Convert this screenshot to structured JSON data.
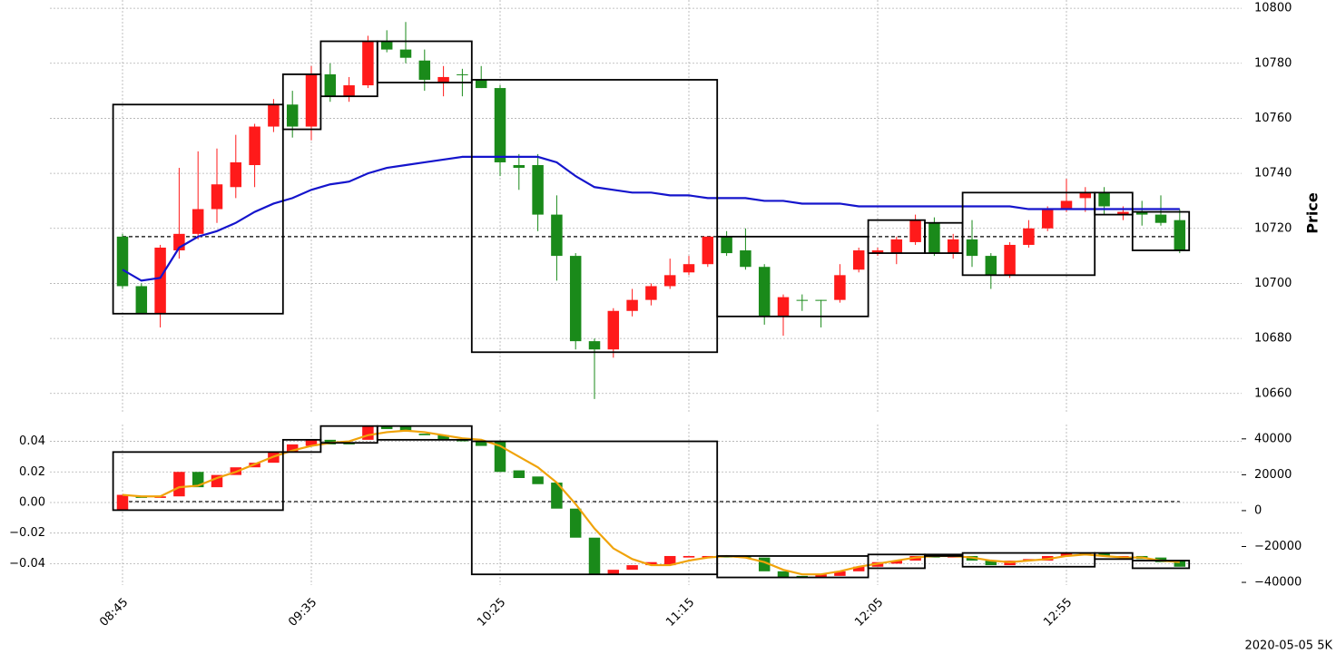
{
  "chart_data": [
    {
      "type": "candlestick",
      "categories": [
        "08:45",
        null,
        null,
        null,
        null,
        null,
        null,
        null,
        null,
        null,
        "09:35",
        null,
        null,
        null,
        null,
        null,
        null,
        null,
        null,
        null,
        "10:25",
        null,
        null,
        null,
        null,
        null,
        null,
        null,
        null,
        null,
        "11:15",
        null,
        null,
        null,
        null,
        null,
        null,
        null,
        null,
        null,
        "12:05",
        null,
        null,
        null,
        null,
        null,
        null,
        null,
        null,
        null,
        "12:55",
        null,
        null,
        null,
        null,
        null,
        null
      ],
      "open": [
        10717,
        10699,
        10689,
        10712,
        10718,
        10727,
        10735,
        10743,
        10757,
        10765,
        10757,
        10776,
        10768,
        10772,
        10788,
        10785,
        10781,
        10773,
        10776,
        10774,
        10771,
        10743,
        10743,
        10725,
        10710,
        10679,
        10676,
        10690,
        10694,
        10699,
        10704,
        10707,
        10717,
        10712,
        10706,
        10688,
        10694,
        10694,
        10694,
        10705,
        10711,
        10711,
        10715,
        10722,
        10711,
        10716,
        10710,
        10703,
        10714,
        10720,
        10727,
        10731,
        10733,
        10725,
        10726,
        10725,
        10723
      ],
      "high": [
        10718,
        10700,
        10714,
        10742,
        10748,
        10749,
        10754,
        10758,
        10767,
        10770,
        10779,
        10780,
        10775,
        10790,
        10792,
        10795,
        10785,
        10779,
        10778,
        10779,
        10772,
        10747,
        10747,
        10732,
        10711,
        10680,
        10691,
        10698,
        10700,
        10709,
        10710,
        10717,
        10719,
        10720,
        10707,
        10696,
        10696,
        10694,
        10707,
        10713,
        10713,
        10717,
        10725,
        10724,
        10718,
        10723,
        10711,
        10715,
        10723,
        10728,
        10738,
        10735,
        10735,
        10728,
        10730,
        10732,
        10727
      ],
      "low": [
        10698,
        10689,
        10684,
        10709,
        10716,
        10722,
        10731,
        10735,
        10755,
        10753,
        10752,
        10766,
        10766,
        10771,
        10784,
        10780,
        10770,
        10768,
        10768,
        10771,
        10739,
        10734,
        10719,
        10701,
        10676,
        10658,
        10673,
        10688,
        10692,
        10698,
        10703,
        10706,
        10710,
        10705,
        10685,
        10681,
        10690,
        10684,
        10693,
        10704,
        10710,
        10707,
        10714,
        10710,
        10709,
        10706,
        10698,
        10702,
        10713,
        10719,
        10726,
        10726,
        10725,
        10723,
        10721,
        10721,
        10711
      ],
      "close": [
        10699,
        10689,
        10713,
        10718,
        10727,
        10736,
        10744,
        10757,
        10765,
        10757,
        10776,
        10768,
        10772,
        10788,
        10785,
        10782,
        10774,
        10775,
        10776,
        10771,
        10744,
        10742,
        10725,
        10710,
        10679,
        10676,
        10690,
        10694,
        10699,
        10703,
        10707,
        10717,
        10711,
        10706,
        10688,
        10695,
        10694,
        10694,
        10703,
        10712,
        10712,
        10716,
        10723,
        10711,
        10716,
        10710,
        10703,
        10714,
        10720,
        10727,
        10730,
        10733,
        10728,
        10726,
        10725,
        10722,
        10712
      ],
      "up_color": "#ff1a1a",
      "down_color": "#1a8a1a",
      "lines": [
        {
          "color": "#1414cc",
          "values": [
            10705,
            10701,
            10702,
            10713,
            10717,
            10719,
            10722,
            10726,
            10729,
            10731,
            10734,
            10736,
            10737,
            10740,
            10742,
            10743,
            10744,
            10745,
            10746,
            10746,
            10746,
            10746,
            10746,
            10744,
            10739,
            10735,
            10734,
            10733,
            10733,
            10732,
            10732,
            10731,
            10731,
            10731,
            10730,
            10730,
            10729,
            10729,
            10729,
            10728,
            10728,
            10728,
            10728,
            10728,
            10728,
            10728,
            10728,
            10728,
            10727,
            10727,
            10727,
            10727,
            10727,
            10727,
            10727,
            10727,
            10727
          ]
        }
      ],
      "boxes": [
        {
          "from": 0,
          "to": 8,
          "low": 10689,
          "high": 10765
        },
        {
          "from": 9,
          "to": 10,
          "low": 10756,
          "high": 10776
        },
        {
          "from": 11,
          "to": 13,
          "low": 10768,
          "high": 10788
        },
        {
          "from": 14,
          "to": 18,
          "low": 10773,
          "high": 10788
        },
        {
          "from": 19,
          "to": 31,
          "low": 10675,
          "high": 10774
        },
        {
          "from": 32,
          "to": 39,
          "low": 10688,
          "high": 10717
        },
        {
          "from": 40,
          "to": 42,
          "low": 10711,
          "high": 10723
        },
        {
          "from": 43,
          "to": 44,
          "low": 10711,
          "high": 10722
        },
        {
          "from": 45,
          "to": 51,
          "low": 10703,
          "high": 10733
        },
        {
          "from": 52,
          "to": 53,
          "low": 10725,
          "high": 10733
        },
        {
          "from": 54,
          "to": 56,
          "low": 10712,
          "high": 10726
        }
      ],
      "hline": 10717,
      "ylim": [
        10653,
        10803
      ],
      "yticks": [
        10660,
        10680,
        10700,
        10720,
        10740,
        10760,
        10780,
        10800
      ],
      "ylabel": "Price",
      "grid": true
    },
    {
      "type": "candlestick",
      "open": [
        -0.005,
        0.004,
        0.003,
        0.004,
        0.02,
        0.01,
        0.018,
        0.023,
        0.026,
        0.033,
        0.037,
        0.041,
        0.039,
        0.041,
        0.05,
        0.05,
        0.045,
        0.044,
        0.041,
        0.04,
        0.04,
        0.021,
        0.017,
        0.013,
        -0.004,
        -0.023,
        -0.047,
        -0.044,
        -0.041,
        -0.041,
        -0.036,
        -0.036,
        -0.035,
        -0.035,
        -0.036,
        -0.045,
        -0.048,
        -0.049,
        -0.048,
        -0.045,
        -0.042,
        -0.04,
        -0.038,
        -0.035,
        -0.036,
        -0.035,
        -0.038,
        -0.041,
        -0.038,
        -0.038,
        -0.035,
        -0.034,
        -0.033,
        -0.036,
        -0.035,
        -0.036,
        -0.038
      ],
      "close": [
        0.005,
        0.003,
        0.004,
        0.02,
        0.01,
        0.018,
        0.023,
        0.026,
        0.033,
        0.038,
        0.041,
        0.038,
        0.038,
        0.05,
        0.048,
        0.047,
        0.044,
        0.041,
        0.04,
        0.037,
        0.02,
        0.016,
        0.012,
        -0.004,
        -0.023,
        -0.047,
        -0.044,
        -0.041,
        -0.039,
        -0.035,
        -0.035,
        -0.035,
        -0.036,
        -0.036,
        -0.045,
        -0.049,
        -0.049,
        -0.047,
        -0.045,
        -0.042,
        -0.039,
        -0.038,
        -0.035,
        -0.036,
        -0.035,
        -0.038,
        -0.041,
        -0.038,
        -0.037,
        -0.035,
        -0.033,
        -0.033,
        -0.035,
        -0.035,
        -0.037,
        -0.039,
        -0.042
      ],
      "up_color": "#ff1a1a",
      "down_color": "#1a8a1a",
      "lines": [
        {
          "color": "#f0a30a",
          "values": [
            0.005,
            0.004,
            0.004,
            0.01,
            0.011,
            0.016,
            0.02,
            0.025,
            0.03,
            0.034,
            0.037,
            0.039,
            0.04,
            0.044,
            0.046,
            0.047,
            0.046,
            0.044,
            0.042,
            0.041,
            0.037,
            0.03,
            0.023,
            0.013,
            -0.001,
            -0.017,
            -0.03,
            -0.037,
            -0.041,
            -0.041,
            -0.038,
            -0.036,
            -0.035,
            -0.036,
            -0.039,
            -0.044,
            -0.047,
            -0.047,
            -0.045,
            -0.042,
            -0.04,
            -0.038,
            -0.036,
            -0.035,
            -0.035,
            -0.036,
            -0.038,
            -0.039,
            -0.038,
            -0.037,
            -0.035,
            -0.034,
            -0.035,
            -0.036,
            -0.036,
            -0.038,
            -0.039
          ]
        }
      ],
      "boxes": [
        {
          "from": 0,
          "to": 8,
          "low": -0.005,
          "high": 0.033
        },
        {
          "from": 9,
          "to": 10,
          "low": 0.033,
          "high": 0.041
        },
        {
          "from": 11,
          "to": 13,
          "low": 0.039,
          "high": 0.05
        },
        {
          "from": 14,
          "to": 18,
          "low": 0.041,
          "high": 0.05
        },
        {
          "from": 19,
          "to": 31,
          "low": -0.047,
          "high": 0.04
        },
        {
          "from": 32,
          "to": 39,
          "low": -0.049,
          "high": -0.035
        },
        {
          "from": 40,
          "to": 42,
          "low": -0.043,
          "high": -0.034
        },
        {
          "from": 43,
          "to": 44,
          "low": -0.035,
          "high": -0.034
        },
        {
          "from": 45,
          "to": 51,
          "low": -0.042,
          "high": -0.033
        },
        {
          "from": 52,
          "to": 53,
          "low": -0.037,
          "high": -0.033
        },
        {
          "from": 54,
          "to": 56,
          "low": -0.043,
          "high": -0.038
        }
      ],
      "hline": 0.0006,
      "ylim": [
        -0.054,
        0.051
      ],
      "yticks": [
        0.04,
        0.02,
        {
          "value": 0,
          "label": "0.00"
        },
        {
          "value": -0.02,
          "label": "−0.02"
        },
        {
          "value": -0.04,
          "label": "−0.04"
        }
      ],
      "y2lim": [
        -41500,
        48000
      ],
      "y2ticks": [
        40000,
        20000,
        0,
        {
          "value": -20000,
          "label": "−20000"
        },
        {
          "value": -40000,
          "label": "−40000"
        }
      ],
      "grid": true
    }
  ],
  "footer": "2020-05-05 5K"
}
